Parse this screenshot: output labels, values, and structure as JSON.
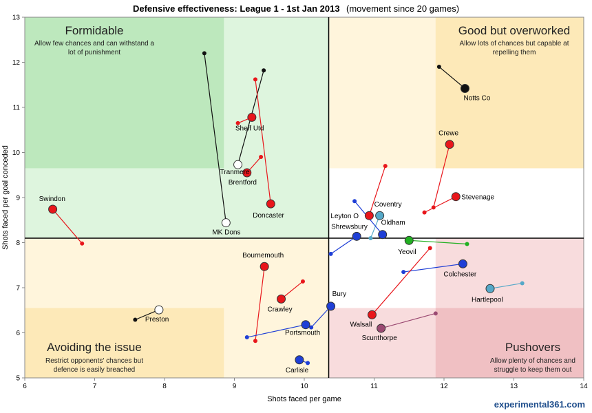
{
  "chart_data": {
    "type": "scatter",
    "title": "Defensive effectiveness: League 1 - 1st Jan 2013",
    "subtitle": "(movement since 20 games)",
    "xlabel": "Shots faced per game",
    "ylabel": "Shots faced per goal conceded",
    "xlim": [
      6,
      14
    ],
    "ylim": [
      5,
      13
    ],
    "xticks": [
      "6",
      "7",
      "8",
      "9",
      "10",
      "11",
      "12",
      "13",
      "14"
    ],
    "yticks": [
      "5",
      "6",
      "7",
      "8",
      "9",
      "10",
      "11",
      "12",
      "13"
    ],
    "avg_x": 10.35,
    "avg_y": 8.1,
    "quadrants": [
      {
        "title": "Formidable",
        "desc1": "Allow few chances and can withstand  a",
        "desc2": "lot of punishment"
      },
      {
        "title": "Good but overworked",
        "desc1": "Allow lots of chances but capable at",
        "desc2": "repelling them"
      },
      {
        "title": "Avoiding the issue",
        "desc1": "Restrict opponents' chances but",
        "desc2": "defence is easily breached"
      },
      {
        "title": "Pushovers",
        "desc1": "Allow plenty of chances and",
        "desc2": "struggle to keep them out"
      }
    ],
    "colors": {
      "red": "#e8161b",
      "black": "#111111",
      "white": "#ffffff",
      "blue": "#1f3fd6",
      "lightblue": "#55a8c8",
      "green": "#22b022",
      "purple": "#9b4a72",
      "green_dark": "#bde8bd",
      "green_light": "#def5de",
      "yellow_dark": "#fde9b8",
      "yellow_light": "#fff5dc",
      "pink_dark": "#f0c0c3",
      "pink_light": "#f8dcdd"
    },
    "teams": [
      {
        "name": "Notts Co",
        "x": 12.3,
        "y": 11.42,
        "px": 11.93,
        "py": 11.9,
        "color": "black"
      },
      {
        "name": "Crewe",
        "x": 12.08,
        "y": 10.18,
        "px": 11.85,
        "py": 8.78,
        "color": "red"
      },
      {
        "name": "Stevenage",
        "x": 12.17,
        "y": 9.02,
        "px": 11.72,
        "py": 8.67,
        "color": "red"
      },
      {
        "name": "Sheff Utd",
        "x": 9.25,
        "y": 10.78,
        "px": 9.05,
        "py": 10.65,
        "color": "red"
      },
      {
        "name": "Tranmere",
        "x": 9.05,
        "y": 9.73,
        "px": 9.42,
        "py": 11.82,
        "color": "white"
      },
      {
        "name": "Brentford",
        "x": 9.18,
        "y": 9.55,
        "px": 9.38,
        "py": 9.9,
        "color": "red"
      },
      {
        "name": "Doncaster",
        "x": 9.52,
        "y": 8.86,
        "px": 9.3,
        "py": 11.62,
        "color": "red"
      },
      {
        "name": "MK Dons",
        "x": 8.88,
        "y": 8.44,
        "px": 8.57,
        "py": 12.2,
        "color": "white"
      },
      {
        "name": "Swindon",
        "x": 6.4,
        "y": 8.74,
        "px": 6.82,
        "py": 7.98,
        "color": "red"
      },
      {
        "name": "Leyton O",
        "x": 10.93,
        "y": 8.6,
        "px": 11.16,
        "py": 9.7,
        "color": "red"
      },
      {
        "name": "Coventry",
        "x": 11.08,
        "y": 8.6,
        "px": 10.95,
        "py": 8.1,
        "color": "lightblue"
      },
      {
        "name": "Shrewsbury",
        "x": 10.75,
        "y": 8.14,
        "px": 10.38,
        "py": 7.75,
        "color": "blue"
      },
      {
        "name": "Oldham",
        "x": 11.12,
        "y": 8.18,
        "px": 10.72,
        "py": 8.92,
        "color": "blue"
      },
      {
        "name": "Yeovil",
        "x": 11.5,
        "y": 8.05,
        "px": 12.33,
        "py": 7.97,
        "color": "green"
      },
      {
        "name": "Colchester",
        "x": 12.27,
        "y": 7.53,
        "px": 11.42,
        "py": 7.35,
        "color": "blue"
      },
      {
        "name": "Hartlepool",
        "x": 12.66,
        "y": 6.98,
        "px": 13.12,
        "py": 7.1,
        "color": "lightblue"
      },
      {
        "name": "Bournemouth",
        "x": 9.43,
        "y": 7.47,
        "px": 9.3,
        "py": 5.82,
        "color": "red"
      },
      {
        "name": "Crawley",
        "x": 9.67,
        "y": 6.75,
        "px": 9.98,
        "py": 7.14,
        "color": "red"
      },
      {
        "name": "Bury",
        "x": 10.38,
        "y": 6.59,
        "px": 10.1,
        "py": 6.12,
        "color": "blue"
      },
      {
        "name": "Portsmouth",
        "x": 10.02,
        "y": 6.18,
        "px": 9.18,
        "py": 5.9,
        "color": "blue"
      },
      {
        "name": "Walsall",
        "x": 10.97,
        "y": 6.4,
        "px": 11.8,
        "py": 7.88,
        "color": "red"
      },
      {
        "name": "Scunthorpe",
        "x": 11.1,
        "y": 6.1,
        "px": 11.88,
        "py": 6.43,
        "color": "purple"
      },
      {
        "name": "Preston",
        "x": 7.92,
        "y": 6.51,
        "px": 7.58,
        "py": 6.29,
        "color": "white"
      },
      {
        "name": "Carlisle",
        "x": 9.93,
        "y": 5.4,
        "px": 10.05,
        "py": 5.33,
        "color": "blue"
      }
    ]
  },
  "watermark": "experimental361.com"
}
